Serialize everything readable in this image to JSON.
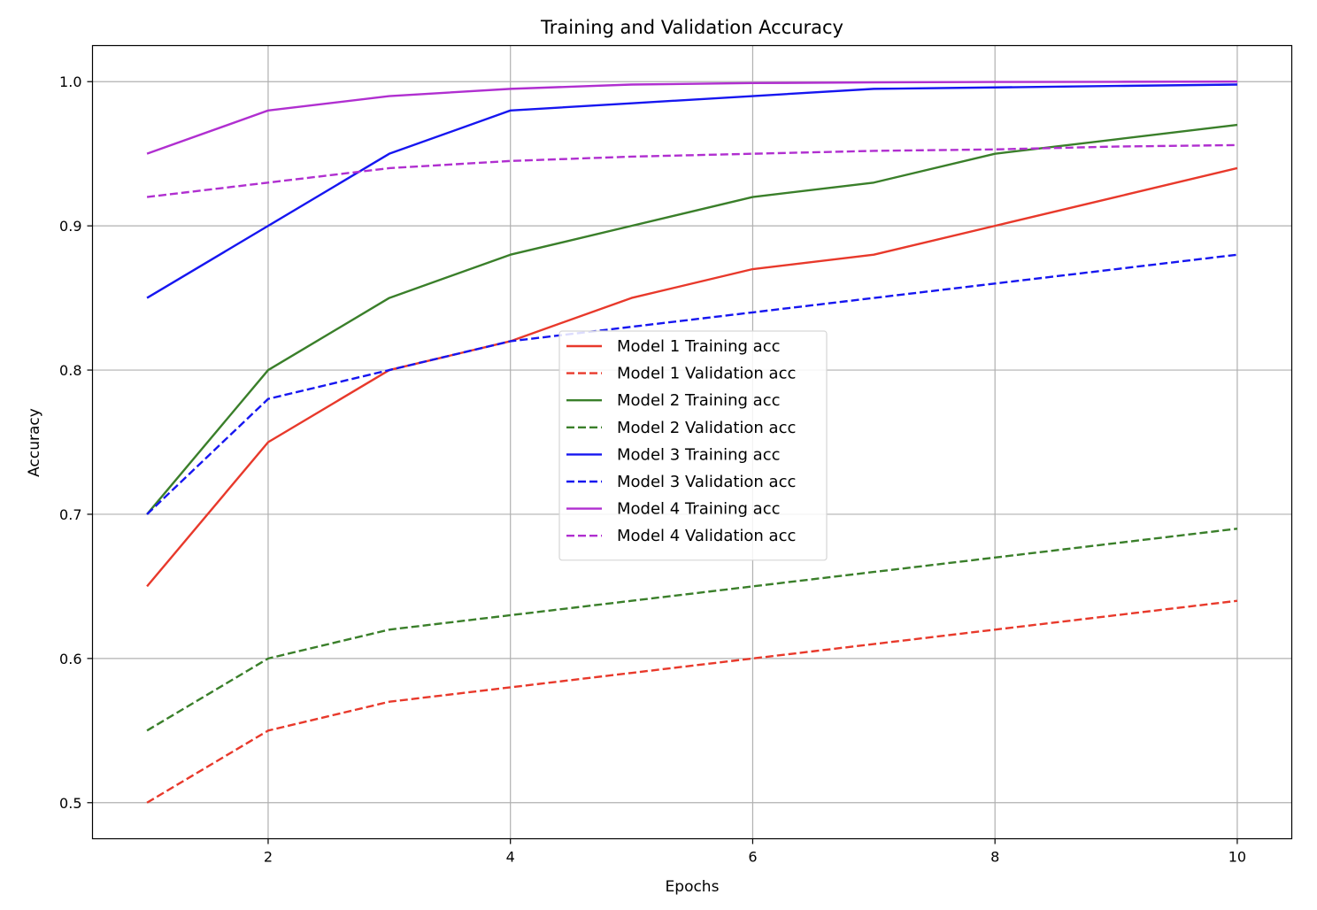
{
  "chart_data": {
    "type": "line",
    "title": "Training and Validation Accuracy",
    "xlabel": "Epochs",
    "ylabel": "Accuracy",
    "xlim": [
      0.55,
      10.45
    ],
    "ylim": [
      0.475,
      1.025
    ],
    "xticks": [
      2,
      4,
      6,
      8,
      10
    ],
    "yticks": [
      0.5,
      0.6,
      0.7,
      0.8,
      0.9,
      1.0
    ],
    "xtick_labels": [
      "2",
      "4",
      "6",
      "8",
      "10"
    ],
    "ytick_labels": [
      "0.5",
      "0.6",
      "0.7",
      "0.8",
      "0.9",
      "1.0"
    ],
    "grid": true,
    "legend_position": "center",
    "x": [
      1,
      2,
      3,
      4,
      5,
      6,
      7,
      8,
      9,
      10
    ],
    "series": [
      {
        "name": "Model 1 Training acc",
        "color": "#e8392b",
        "dash": "solid",
        "values": [
          0.65,
          0.75,
          0.8,
          0.82,
          0.85,
          0.87,
          0.88,
          0.9,
          0.92,
          0.94
        ]
      },
      {
        "name": "Model 1 Validation acc",
        "color": "#e8392b",
        "dash": "dashed",
        "values": [
          0.5,
          0.55,
          0.57,
          0.58,
          0.59,
          0.6,
          0.61,
          0.62,
          0.63,
          0.64
        ]
      },
      {
        "name": "Model 2 Training acc",
        "color": "#3a7f2a",
        "dash": "solid",
        "values": [
          0.7,
          0.8,
          0.85,
          0.88,
          0.9,
          0.92,
          0.93,
          0.95,
          0.96,
          0.97
        ]
      },
      {
        "name": "Model 2 Validation acc",
        "color": "#3a7f2a",
        "dash": "dashed",
        "values": [
          0.55,
          0.6,
          0.62,
          0.63,
          0.64,
          0.65,
          0.66,
          0.67,
          0.68,
          0.69
        ]
      },
      {
        "name": "Model 3 Training acc",
        "color": "#1616f0",
        "dash": "solid",
        "values": [
          0.85,
          0.9,
          0.95,
          0.98,
          0.985,
          0.99,
          0.995,
          0.996,
          0.997,
          0.998
        ]
      },
      {
        "name": "Model 3 Validation acc",
        "color": "#1616f0",
        "dash": "dashed",
        "values": [
          0.7,
          0.78,
          0.8,
          0.82,
          0.83,
          0.84,
          0.85,
          0.86,
          0.87,
          0.88
        ]
      },
      {
        "name": "Model 4 Training acc",
        "color": "#b02fd0",
        "dash": "solid",
        "values": [
          0.95,
          0.98,
          0.99,
          0.995,
          0.998,
          0.999,
          0.9995,
          0.9998,
          0.9999,
          1.0
        ]
      },
      {
        "name": "Model 4 Validation acc",
        "color": "#b02fd0",
        "dash": "dashed",
        "values": [
          0.92,
          0.93,
          0.94,
          0.945,
          0.948,
          0.95,
          0.952,
          0.953,
          0.955,
          0.956
        ]
      }
    ]
  }
}
